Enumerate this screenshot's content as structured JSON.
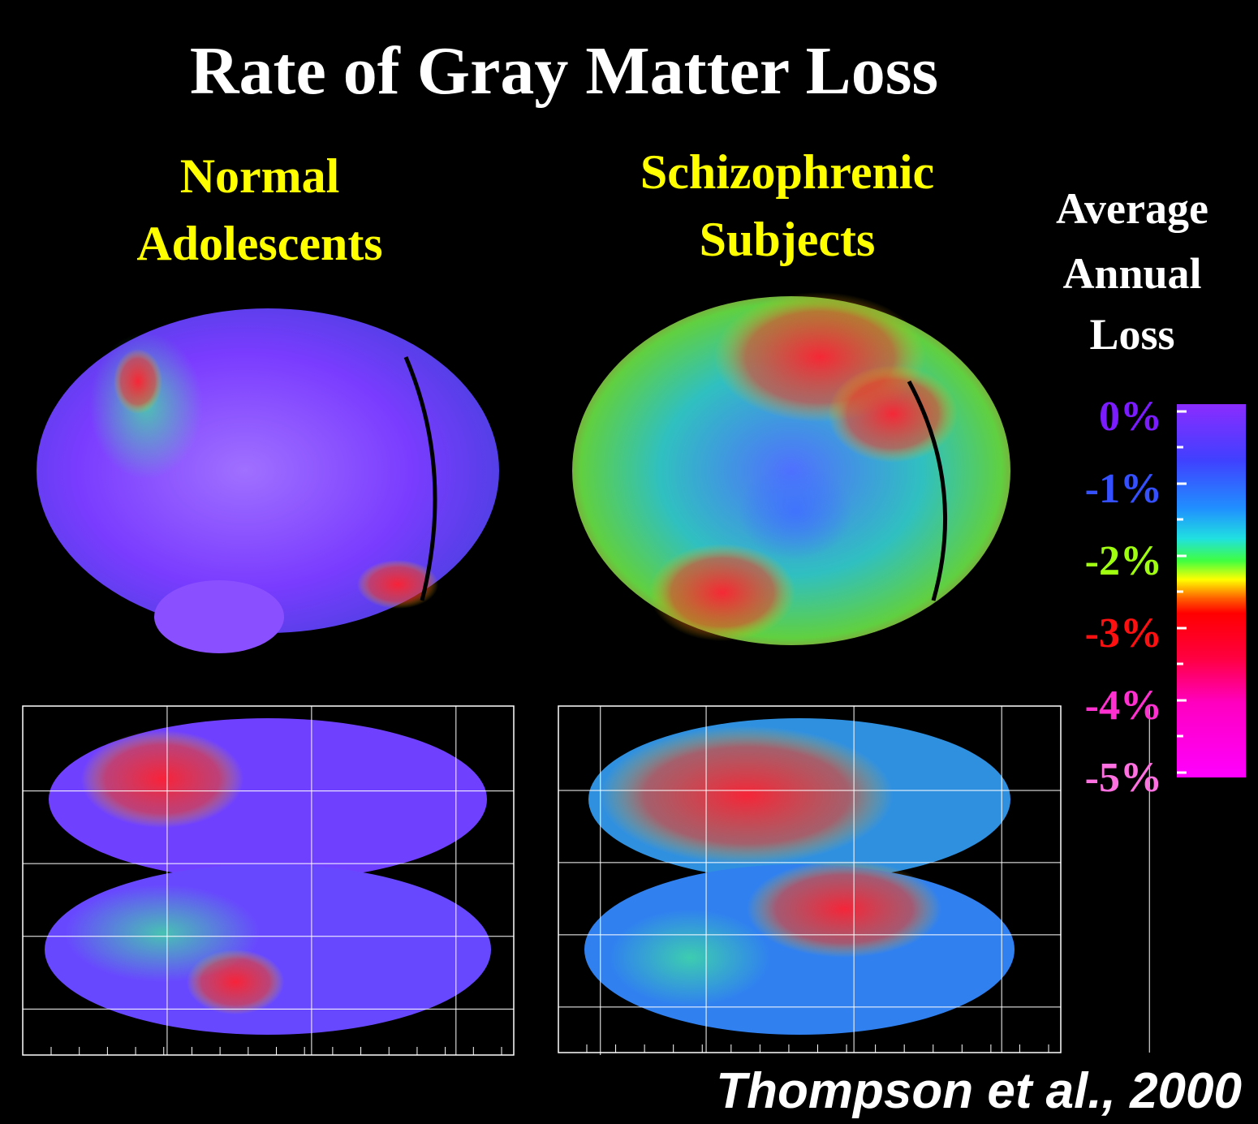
{
  "header": {
    "title": "Rate of Gray Matter Loss"
  },
  "panels": [
    {
      "label": [
        "Normal",
        "Adolescents"
      ]
    },
    {
      "label": [
        "Schizophrenic",
        "Subjects"
      ]
    }
  ],
  "colorbar": {
    "title": [
      "Average",
      "Annual",
      "Loss"
    ],
    "labels": [
      "0%",
      "-1%",
      "-2%",
      "-3%",
      "-4%",
      "-5%"
    ]
  },
  "citation": "Thompson et al., 2000"
}
